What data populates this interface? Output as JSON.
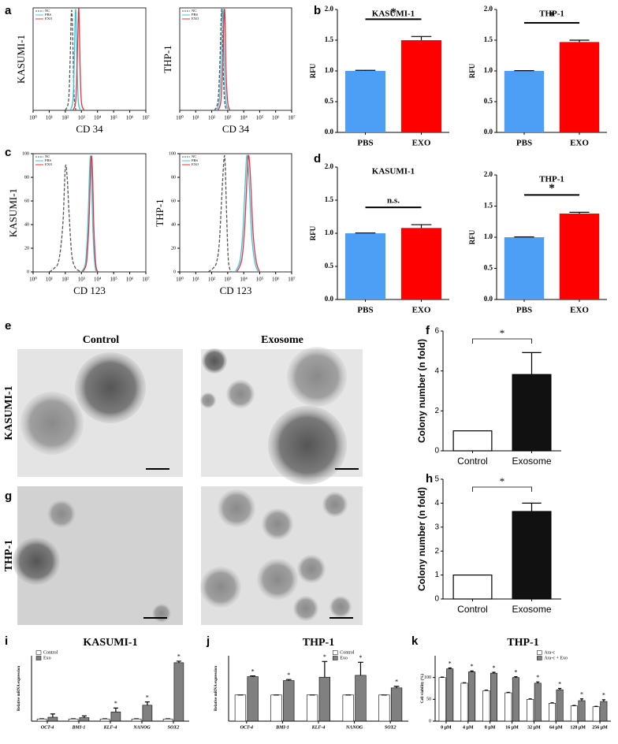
{
  "panel_labels": [
    "a",
    "b",
    "c",
    "d",
    "e",
    "f",
    "g",
    "h",
    "i",
    "j",
    "k"
  ],
  "images": {
    "columns": [
      "Control",
      "Exosome"
    ],
    "rows": [
      "KASUMI-1",
      "THP-1"
    ]
  },
  "chart_data": [
    {
      "type": "line",
      "ylabel": "KASUMI-1",
      "xlabel": "CD 34",
      "xscale": "log",
      "xlim": [
        1,
        10000000
      ],
      "ylim": [
        0,
        100
      ],
      "legend": "upper left",
      "xticks": [
        {
          "value": 1,
          "label": "10⁰"
        },
        {
          "value": 10,
          "label": "10¹"
        },
        {
          "value": 100,
          "label": "10²"
        },
        {
          "value": 1000,
          "label": "10³"
        },
        {
          "value": 10000,
          "label": "10⁴"
        },
        {
          "value": 100000,
          "label": "10⁵"
        },
        {
          "value": 1000000,
          "label": "10⁶"
        },
        {
          "value": 10000000,
          "label": "10⁷"
        }
      ],
      "series": [
        {
          "name": "NC",
          "color": "#555555",
          "dash": true,
          "x": [
            100,
            160,
            200,
            230,
            260,
            300,
            350,
            450
          ],
          "values": [
            0,
            10,
            50,
            90,
            95,
            60,
            15,
            0
          ]
        },
        {
          "name": "PBS",
          "color": "#33c8e0",
          "x": [
            200,
            300,
            360,
            420,
            470,
            530,
            650,
            900
          ],
          "values": [
            0,
            10,
            50,
            95,
            90,
            45,
            8,
            0
          ]
        },
        {
          "name": "EXO",
          "color": "#e8303a",
          "x": [
            300,
            450,
            550,
            650,
            720,
            820,
            1000,
            1500
          ],
          "values": [
            0,
            10,
            50,
            95,
            92,
            45,
            8,
            0
          ]
        }
      ]
    },
    {
      "type": "line",
      "ylabel": "THP-1",
      "xlabel": "CD 34",
      "xscale": "log",
      "xlim": [
        1,
        10000000
      ],
      "ylim": [
        0,
        100
      ],
      "legend": "upper left",
      "xticks": [
        {
          "value": 1,
          "label": "10⁰"
        },
        {
          "value": 10,
          "label": "10¹"
        },
        {
          "value": 100,
          "label": "10²"
        },
        {
          "value": 1000,
          "label": "10³"
        },
        {
          "value": 10000,
          "label": "10⁴"
        },
        {
          "value": 100000,
          "label": "10⁵"
        },
        {
          "value": 1000000,
          "label": "10⁶"
        },
        {
          "value": 10000000,
          "label": "10⁷"
        }
      ],
      "series": [
        {
          "name": "NC",
          "color": "#555555",
          "dash": true,
          "x": [
            150,
            250,
            330,
            400,
            450,
            520,
            650,
            900
          ],
          "values": [
            0,
            10,
            50,
            95,
            90,
            40,
            8,
            0
          ]
        },
        {
          "name": "PBS",
          "color": "#33c8e0",
          "x": [
            200,
            300,
            400,
            480,
            540,
            620,
            800,
            1100
          ],
          "values": [
            0,
            10,
            50,
            95,
            90,
            40,
            8,
            0
          ]
        },
        {
          "name": "EXO",
          "color": "#e8303a",
          "x": [
            250,
            380,
            500,
            600,
            680,
            780,
            1000,
            1400
          ],
          "values": [
            0,
            10,
            50,
            95,
            90,
            40,
            8,
            0
          ]
        }
      ]
    },
    {
      "type": "bar",
      "title": "KASUMI-1",
      "ylabel": "RFU",
      "categories": [
        "PBS",
        "EXO"
      ],
      "values": [
        1.0,
        1.5
      ],
      "errors": [
        0.01,
        0.06
      ],
      "colors": [
        "#4d9ef5",
        "#ff0000"
      ],
      "significance": "*",
      "ylim": [
        0,
        2
      ],
      "yticks": [
        {
          "value": 0,
          "label": "0.0"
        },
        {
          "value": 0.5,
          "label": "0.5"
        },
        {
          "value": 1,
          "label": "1.0"
        },
        {
          "value": 1.5,
          "label": "1.5"
        },
        {
          "value": 2,
          "label": "2.0"
        }
      ]
    },
    {
      "type": "bar",
      "title": "THP-1",
      "ylabel": "RFU",
      "categories": [
        "PBS",
        "EXO"
      ],
      "values": [
        1.0,
        1.47
      ],
      "errors": [
        0.005,
        0.03
      ],
      "colors": [
        "#4d9ef5",
        "#ff0000"
      ],
      "significance": "*",
      "ylim": [
        0,
        2
      ],
      "yticks": [
        {
          "value": 0,
          "label": "0.0"
        },
        {
          "value": 0.5,
          "label": "0.5"
        },
        {
          "value": 1,
          "label": "1.0"
        },
        {
          "value": 1.5,
          "label": "1.5"
        },
        {
          "value": 2,
          "label": "2.0"
        }
      ]
    },
    {
      "type": "line",
      "ylabel": "KASUMI-1",
      "xlabel": "CD 123",
      "xscale": "log",
      "xlim": [
        1,
        10000000
      ],
      "ylim": [
        0,
        100
      ],
      "yticks": [
        0,
        20,
        40,
        60,
        80,
        100
      ],
      "legend": "upper left",
      "xticks": [
        {
          "value": 1,
          "label": "10⁰"
        },
        {
          "value": 10,
          "label": "10¹"
        },
        {
          "value": 100,
          "label": "10²"
        },
        {
          "value": 1000,
          "label": "10³"
        },
        {
          "value": 10000,
          "label": "10⁴"
        },
        {
          "value": 100000,
          "label": "10⁵"
        },
        {
          "value": 1000000,
          "label": "10⁶"
        },
        {
          "value": 10000000,
          "label": "10⁷"
        }
      ],
      "series": [
        {
          "name": "NC",
          "color": "#555555",
          "dash": true,
          "x": [
            10,
            20,
            40,
            70,
            100,
            130,
            170,
            250,
            400,
            700,
            1000
          ],
          "values": [
            0,
            3,
            10,
            40,
            88,
            80,
            50,
            15,
            4,
            1,
            0
          ]
        },
        {
          "name": "PBS",
          "color": "#33c8e0",
          "x": [
            1000,
            1800,
            2500,
            3200,
            3700,
            4300,
            5200,
            7000,
            10000
          ],
          "values": [
            0,
            8,
            40,
            85,
            98,
            80,
            35,
            5,
            0
          ]
        },
        {
          "name": "EXO",
          "color": "#e8303a",
          "x": [
            1150,
            2070,
            2900,
            3700,
            4300,
            5000,
            6000,
            8000,
            11500
          ],
          "values": [
            0,
            8,
            40,
            85,
            98,
            80,
            35,
            5,
            0
          ]
        }
      ]
    },
    {
      "type": "line",
      "ylabel": "THP-1",
      "xlabel": "CD 123",
      "xscale": "log",
      "xlim": [
        1,
        10000000
      ],
      "ylim": [
        0,
        100
      ],
      "yticks": [
        0,
        20,
        40,
        60,
        80,
        100
      ],
      "legend": "upper left",
      "xticks": [
        {
          "value": 1,
          "label": "10⁰"
        },
        {
          "value": 10,
          "label": "10¹"
        },
        {
          "value": 100,
          "label": "10²"
        },
        {
          "value": 1000,
          "label": "10³"
        },
        {
          "value": 10000,
          "label": "10⁴"
        },
        {
          "value": 100000,
          "label": "10⁵"
        },
        {
          "value": 1000000,
          "label": "10⁶"
        },
        {
          "value": 10000000,
          "label": "10⁷"
        }
      ],
      "series": [
        {
          "name": "NC",
          "color": "#555555",
          "dash": true,
          "x": [
            60,
            120,
            200,
            300,
            450,
            600,
            700,
            850,
            1100,
            1600
          ],
          "values": [
            0,
            3,
            8,
            25,
            70,
            97,
            90,
            50,
            10,
            0
          ]
        },
        {
          "name": "PBS",
          "color": "#33c8e0",
          "x": [
            3000,
            6000,
            9000,
            12000,
            15000,
            18000,
            23000,
            32000,
            50000,
            80000
          ],
          "values": [
            0,
            10,
            35,
            70,
            96,
            95,
            70,
            30,
            8,
            0
          ]
        },
        {
          "name": "EXO",
          "color": "#e8303a",
          "x": [
            3750,
            7500,
            11250,
            15000,
            18750,
            22500,
            28750,
            40000,
            62500,
            100000
          ],
          "values": [
            0,
            10,
            35,
            70,
            96,
            95,
            70,
            30,
            8,
            0
          ]
        }
      ]
    },
    {
      "type": "bar",
      "title": "KASUMI-1",
      "ylabel": "RFU",
      "categories": [
        "PBS",
        "EXO"
      ],
      "values": [
        1.0,
        1.08
      ],
      "errors": [
        0.005,
        0.05
      ],
      "colors": [
        "#4d9ef5",
        "#ff0000"
      ],
      "significance": "n.s.",
      "ylim": [
        0,
        2
      ],
      "yticks": [
        {
          "value": 0,
          "label": "0.0"
        },
        {
          "value": 0.5,
          "label": "0.5"
        },
        {
          "value": 1,
          "label": "1.0"
        },
        {
          "value": 1.5,
          "label": "1.5"
        },
        {
          "value": 2,
          "label": "2.0"
        }
      ]
    },
    {
      "type": "bar",
      "title": "THP-1",
      "ylabel": "RFU",
      "categories": [
        "PBS",
        "EXO"
      ],
      "values": [
        1.0,
        1.38
      ],
      "errors": [
        0.005,
        0.02
      ],
      "colors": [
        "#4d9ef5",
        "#ff0000"
      ],
      "significance": "*",
      "ylim": [
        0,
        2
      ],
      "yticks": [
        {
          "value": 0,
          "label": "0.0"
        },
        {
          "value": 0.5,
          "label": "0.5"
        },
        {
          "value": 1,
          "label": "1.0"
        },
        {
          "value": 1.5,
          "label": "1.5"
        },
        {
          "value": 2,
          "label": "2.0"
        }
      ]
    },
    {
      "type": "bar",
      "ylabel": "Colony number (n fold)",
      "categories": [
        "Control",
        "Exosome"
      ],
      "values": [
        1,
        3.82
      ],
      "errors": [
        0,
        1.1
      ],
      "colors": [
        "#ffffff",
        "#111111"
      ],
      "significance": "*",
      "bracket": true,
      "ylim": [
        0,
        6
      ],
      "yticks": [
        0,
        2,
        4,
        6
      ]
    },
    {
      "type": "bar",
      "ylabel": "Colony number (n fold)",
      "categories": [
        "Control",
        "Exosome"
      ],
      "values": [
        1,
        3.65
      ],
      "errors": [
        0,
        0.35
      ],
      "colors": [
        "#ffffff",
        "#111111"
      ],
      "significance": "*",
      "bracket": true,
      "ylim": [
        0,
        5
      ],
      "yticks": [
        0,
        1,
        2,
        3,
        4,
        5
      ]
    },
    {
      "type": "bar",
      "title": "KASUMI-1",
      "ylabel": "Relative mRNA expression",
      "categories": [
        "OCT-4",
        "BMI-1",
        "KLF-4",
        "NANOG",
        "SOX2"
      ],
      "italic_categories": true,
      "ylim": [
        0,
        30
      ],
      "legend": "upper left",
      "series": [
        {
          "name": "Control",
          "color": "#ffffff",
          "values": [
            1,
            1,
            1,
            1,
            1
          ],
          "errors": [
            0.1,
            0.1,
            0.1,
            0.1,
            0.1
          ]
        },
        {
          "name": "Exo",
          "color": "#808080",
          "values": [
            1.8,
            1.6,
            4.2,
            7.3,
            26.8
          ],
          "errors": [
            1.5,
            0.8,
            1.8,
            1.5,
            0.7
          ],
          "markers": [
            null,
            null,
            "*",
            "*",
            "*"
          ]
        }
      ]
    },
    {
      "type": "bar",
      "title": "THP-1",
      "ylabel": "Relative mRNA expression",
      "categories": [
        "OCT-4",
        "BMI-1",
        "KLF-4",
        "NANOG",
        "SOX2"
      ],
      "italic_categories": true,
      "ylim": [
        0,
        2.5
      ],
      "legend": "upper right",
      "series": [
        {
          "name": "Control",
          "color": "#ffffff",
          "values": [
            1,
            1,
            1,
            1,
            1
          ],
          "errors": [
            0,
            0,
            0,
            0,
            0
          ]
        },
        {
          "name": "Exo",
          "color": "#808080",
          "values": [
            1.7,
            1.55,
            1.68,
            1.75,
            1.27
          ],
          "errors": [
            0.03,
            0.04,
            0.6,
            0.5,
            0.06
          ],
          "markers": [
            "*",
            "*",
            "*",
            "*",
            "*"
          ]
        }
      ]
    },
    {
      "type": "bar",
      "title": "THP-1",
      "ylabel": "Cell viability (%)",
      "categories": [
        "0 μM",
        "4 μM",
        "8 μM",
        "16 μM",
        "32 μM",
        "64 μM",
        "128 μM",
        "256 μM"
      ],
      "ylim": [
        0,
        150
      ],
      "yticks": [
        0,
        50,
        100
      ],
      "legend": "upper right",
      "series": [
        {
          "name": "Ara-c",
          "color": "#ffffff",
          "values": [
            100,
            87,
            70,
            65,
            50,
            41,
            35,
            33
          ],
          "errors": [
            1,
            1,
            1,
            1,
            1,
            1,
            1,
            1
          ]
        },
        {
          "name": "Ara-c + Exo",
          "color": "#808080",
          "values": [
            120,
            113,
            110,
            100,
            87,
            72,
            47,
            45
          ],
          "errors": [
            2,
            2,
            2,
            2,
            3,
            3,
            4,
            4
          ],
          "markers": [
            "*",
            "*",
            "*",
            "*",
            "*",
            "*",
            "*",
            "*"
          ]
        }
      ]
    }
  ]
}
